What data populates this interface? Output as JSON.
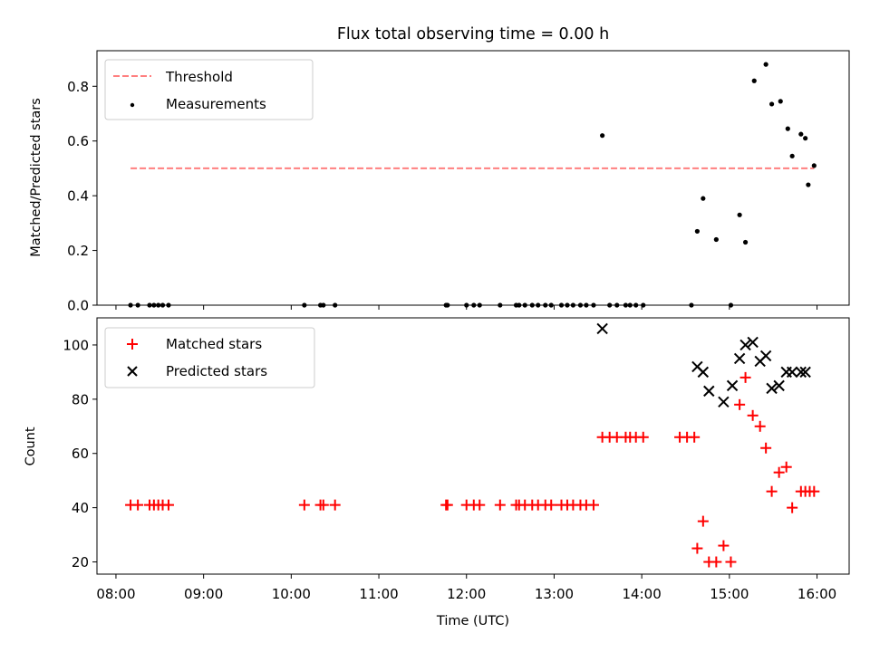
{
  "title": "Flux total observing time = 0.00 h",
  "colors": {
    "threshold": "#ff7f7f",
    "measurements": "#000000",
    "matched": "#ff0000",
    "predicted": "#000000"
  },
  "chart_data": [
    {
      "type": "scatter",
      "title": "Flux total observing time = 0.00 h",
      "xlabel": "",
      "ylabel": "Matched/Predicted stars",
      "xlim": [
        "07:47",
        "16:22"
      ],
      "ylim": [
        0,
        0.93
      ],
      "grid": false,
      "legend_position": "top-left",
      "x_ticks": [
        "08:00",
        "09:00",
        "10:00",
        "11:00",
        "12:00",
        "13:00",
        "14:00",
        "15:00",
        "16:00"
      ],
      "y_ticks": [
        "0.0",
        "0.2",
        "0.4",
        "0.6",
        "0.8"
      ],
      "series": [
        {
          "name": "Threshold",
          "kind": "dashed-line",
          "x": [
            "08:10",
            "15:58"
          ],
          "y": [
            0.5,
            0.5
          ]
        },
        {
          "name": "Measurements",
          "kind": "points",
          "x": [
            "08:10",
            "08:15",
            "08:23",
            "08:26",
            "08:29",
            "08:32",
            "08:36",
            "10:09",
            "10:20",
            "10:22",
            "10:30",
            "11:46",
            "11:47",
            "12:00",
            "12:05",
            "12:09",
            "12:23",
            "12:34",
            "12:36",
            "12:40",
            "12:45",
            "12:49",
            "12:54",
            "12:58",
            "13:05",
            "13:09",
            "13:13",
            "13:18",
            "13:22",
            "13:27",
            "13:33",
            "13:38",
            "13:43",
            "13:49",
            "13:52",
            "13:56",
            "14:01",
            "14:34",
            "14:38",
            "14:42",
            "14:51",
            "15:01",
            "15:07",
            "15:11",
            "15:17",
            "15:25",
            "15:29",
            "15:35",
            "15:40",
            "15:43",
            "15:49",
            "15:52",
            "15:54",
            "15:58"
          ],
          "y": [
            0,
            0,
            0,
            0,
            0,
            0,
            0,
            0,
            0,
            0,
            0,
            0,
            0,
            0,
            0,
            0,
            0,
            0,
            0,
            0,
            0,
            0,
            0,
            0,
            0,
            0,
            0,
            0,
            0,
            0,
            0.62,
            0,
            0,
            0,
            0,
            0,
            0,
            0,
            0.27,
            0.39,
            0.24,
            0,
            0.33,
            0.23,
            0.82,
            0.88,
            0.735,
            0.745,
            0.645,
            0.545,
            0.625,
            0.61,
            0.44,
            0.51
          ]
        }
      ]
    },
    {
      "type": "scatter",
      "title": "",
      "xlabel": "Time (UTC)",
      "ylabel": "Count",
      "xlim": [
        "07:47",
        "16:22"
      ],
      "ylim": [
        15.5,
        110
      ],
      "grid": false,
      "legend_position": "top-left",
      "x_ticks": [
        "08:00",
        "09:00",
        "10:00",
        "11:00",
        "12:00",
        "13:00",
        "14:00",
        "15:00",
        "16:00"
      ],
      "y_ticks": [
        "20",
        "40",
        "60",
        "80",
        "100"
      ],
      "series": [
        {
          "name": "Matched stars",
          "marker": "plus",
          "x": [
            "08:10",
            "08:15",
            "08:23",
            "08:26",
            "08:29",
            "08:32",
            "08:36",
            "10:09",
            "10:20",
            "10:22",
            "10:30",
            "11:46",
            "11:47",
            "12:00",
            "12:05",
            "12:09",
            "12:23",
            "12:34",
            "12:36",
            "12:40",
            "12:45",
            "12:49",
            "12:54",
            "12:58",
            "13:05",
            "13:09",
            "13:13",
            "13:18",
            "13:22",
            "13:27",
            "13:33",
            "13:38",
            "13:43",
            "13:49",
            "13:52",
            "13:56",
            "14:01",
            "14:26",
            "14:31",
            "14:36",
            "14:38",
            "14:42",
            "14:46",
            "14:51",
            "14:56",
            "15:01",
            "15:07",
            "15:11",
            "15:16",
            "15:21",
            "15:25",
            "15:29",
            "15:34",
            "15:39",
            "15:43",
            "15:49",
            "15:52",
            "15:55",
            "15:58"
          ],
          "y": [
            41,
            41,
            41,
            41,
            41,
            41,
            41,
            41,
            41,
            41,
            41,
            41,
            41,
            41,
            41,
            41,
            41,
            41,
            41,
            41,
            41,
            41,
            41,
            41,
            41,
            41,
            41,
            41,
            41,
            41,
            66,
            66,
            66,
            66,
            66,
            66,
            66,
            66,
            66,
            66,
            25,
            35,
            20,
            20,
            26,
            20,
            78,
            88,
            74,
            70,
            62,
            46,
            53,
            55,
            40,
            46,
            46,
            46,
            46
          ]
        },
        {
          "name": "Predicted stars",
          "marker": "x",
          "x": [
            "13:33",
            "14:38",
            "14:42",
            "14:46",
            "14:56",
            "15:02",
            "15:07",
            "15:11",
            "15:16",
            "15:21",
            "15:25",
            "15:29",
            "15:34",
            "15:39",
            "15:43",
            "15:49",
            "15:52"
          ],
          "y": [
            106,
            92,
            90,
            83,
            79,
            85,
            95,
            100,
            101,
            94,
            96,
            84,
            85,
            90,
            90,
            90,
            90
          ]
        }
      ]
    }
  ]
}
